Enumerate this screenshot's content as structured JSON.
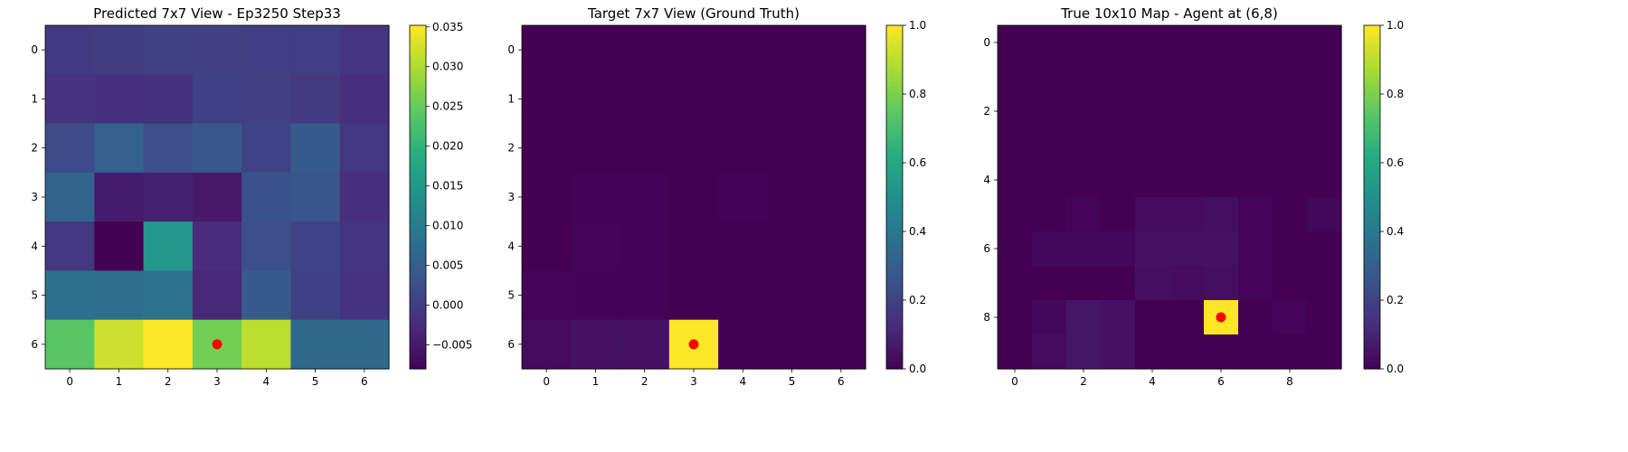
{
  "chart_data": [
    {
      "type": "heatmap",
      "title": "Predicted 7x7 View - Ep3250 Step33",
      "rows": 7,
      "cols": 7,
      "x_ticks": [
        0,
        1,
        2,
        3,
        4,
        5,
        6
      ],
      "y_ticks": [
        0,
        1,
        2,
        3,
        4,
        5,
        6
      ],
      "grid": false,
      "values": [
        [
          -0.0005,
          -0.0003,
          0.0004,
          0.0003,
          0.0001,
          0.0002,
          -0.0012
        ],
        [
          -0.0015,
          -0.0018,
          -0.0017,
          0.0005,
          0.0003,
          -0.0006,
          -0.002
        ],
        [
          0.002,
          0.0055,
          0.0025,
          0.004,
          0.0008,
          0.0045,
          -0.001
        ],
        [
          0.006,
          -0.0045,
          -0.004,
          -0.005,
          0.003,
          0.0035,
          -0.002
        ],
        [
          -0.001,
          -0.008,
          0.015,
          -0.0025,
          0.0025,
          0.0008,
          -0.0012
        ],
        [
          0.008,
          0.0075,
          0.0085,
          -0.003,
          0.0045,
          0.0005,
          -0.0015
        ],
        [
          0.024,
          0.032,
          0.035,
          0.026,
          0.031,
          0.007,
          0.007
        ]
      ],
      "vmin": -0.008,
      "vmax": 0.0352,
      "colorbar_ticks": [
        -0.005,
        0.0,
        0.005,
        0.01,
        0.015,
        0.02,
        0.025,
        0.03,
        0.035
      ],
      "colorbar_tick_labels": [
        "−0.005",
        "0.000",
        "0.005",
        "0.010",
        "0.015",
        "0.020",
        "0.025",
        "0.030",
        "0.035"
      ],
      "marker": {
        "row": 6,
        "col": 3,
        "color": "#ff0000"
      }
    },
    {
      "type": "heatmap",
      "title": "Target 7x7 View (Ground Truth)",
      "rows": 7,
      "cols": 7,
      "x_ticks": [
        0,
        1,
        2,
        3,
        4,
        5,
        6
      ],
      "y_ticks": [
        0,
        1,
        2,
        3,
        4,
        5,
        6
      ],
      "grid": false,
      "values": [
        [
          0,
          0,
          0,
          0,
          0,
          0,
          0
        ],
        [
          0,
          0,
          0,
          0,
          0,
          0,
          0
        ],
        [
          0,
          0,
          0,
          0,
          0,
          0,
          0
        ],
        [
          0,
          0.005,
          0.005,
          0,
          0.005,
          0,
          0
        ],
        [
          0,
          0.01,
          0.005,
          0,
          0,
          0,
          0
        ],
        [
          0.01,
          0.005,
          0.005,
          0,
          0,
          0,
          0
        ],
        [
          0.03,
          0.05,
          0.05,
          1.0,
          0,
          0,
          0
        ]
      ],
      "vmin": 0.0,
      "vmax": 1.0,
      "colorbar_ticks": [
        0.0,
        0.2,
        0.4,
        0.6,
        0.8,
        1.0
      ],
      "colorbar_tick_labels": [
        "0.0",
        "0.2",
        "0.4",
        "0.6",
        "0.8",
        "1.0"
      ],
      "marker": {
        "row": 6,
        "col": 3,
        "color": "#ff0000"
      }
    },
    {
      "type": "heatmap",
      "title": "True 10x10 Map - Agent at (6,8)",
      "rows": 10,
      "cols": 10,
      "x_ticks": [
        0,
        2,
        4,
        6,
        8
      ],
      "y_ticks": [
        0,
        2,
        4,
        6,
        8
      ],
      "grid": false,
      "values": [
        [
          0,
          0,
          0,
          0,
          0,
          0,
          0,
          0,
          0,
          0
        ],
        [
          0,
          0,
          0,
          0,
          0,
          0,
          0,
          0,
          0,
          0
        ],
        [
          0,
          0,
          0,
          0,
          0,
          0,
          0,
          0,
          0,
          0
        ],
        [
          0,
          0,
          0,
          0,
          0,
          0,
          0,
          0,
          0,
          0
        ],
        [
          0,
          0,
          0,
          0,
          0,
          0,
          0,
          0,
          0,
          0
        ],
        [
          0,
          0,
          0.01,
          0,
          0.03,
          0.03,
          0.04,
          0.01,
          0,
          0.02
        ],
        [
          0,
          0.02,
          0.02,
          0.02,
          0.05,
          0.05,
          0.05,
          0.01,
          0,
          0
        ],
        [
          0,
          0,
          0,
          0,
          0.04,
          0.03,
          0.04,
          0.01,
          0,
          0
        ],
        [
          0,
          0.02,
          0.06,
          0.05,
          0,
          0,
          1.0,
          0,
          0.01,
          0
        ],
        [
          0,
          0.03,
          0.06,
          0.05,
          0,
          0,
          0,
          0,
          0,
          0
        ]
      ],
      "vmin": 0.0,
      "vmax": 1.0,
      "colorbar_ticks": [
        0.0,
        0.2,
        0.4,
        0.6,
        0.8,
        1.0
      ],
      "colorbar_tick_labels": [
        "0.0",
        "0.2",
        "0.4",
        "0.6",
        "0.8",
        "1.0"
      ],
      "marker": {
        "row": 8,
        "col": 6,
        "color": "#ff0000"
      }
    }
  ]
}
